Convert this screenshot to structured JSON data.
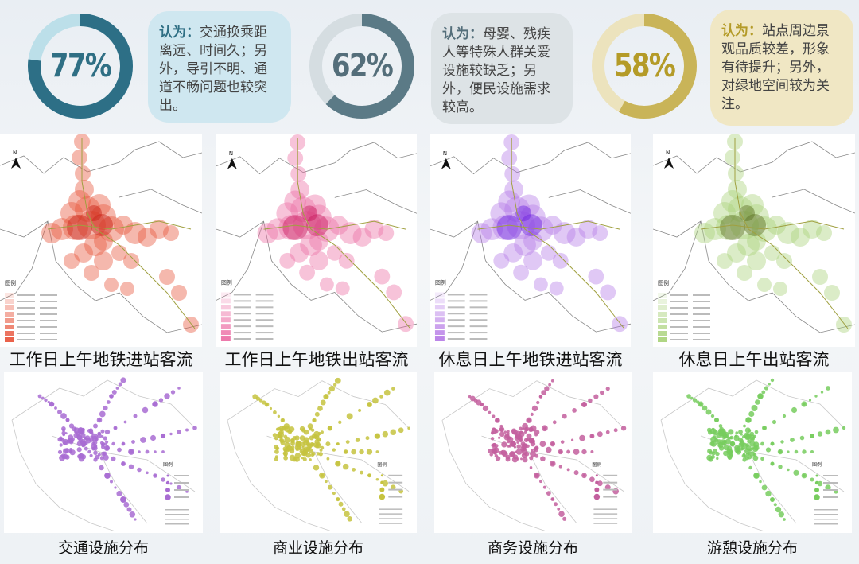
{
  "stats": [
    {
      "percent": "77%",
      "label": "认为：",
      "text": "交通换乘距离远、时间久；另外，导引不明、通道不畅问题也较突出。",
      "ring_color": "#2d6f86",
      "track_color": "#bcdfe9",
      "text_color": "#2f6f84",
      "bubble_bg": "#cfe7f0",
      "fill_fraction": 0.77
    },
    {
      "percent": "62%",
      "label": "认为：",
      "text": "母婴、残疾人等特殊人群关爱设施较缺乏；另外，便民设施需求较高。",
      "ring_color": "#5b7a86",
      "track_color": "#d5dde1",
      "text_color": "#546e7a",
      "bubble_bg": "#dde3e6",
      "fill_fraction": 0.62
    },
    {
      "percent": "58%",
      "label": "认为：",
      "text": "站点周边景观品质较差，形象有待提升；另外，对绿地空间较为关注。",
      "ring_color": "#c9b458",
      "track_color": "#ece3bd",
      "text_color": "#b49b28",
      "bubble_bg": "#f0e7c4",
      "fill_fraction": 0.58
    }
  ],
  "heatmaps": [
    {
      "caption": "工作日上午地铁进站客流",
      "legend_title": "图例",
      "color": "#e8553c",
      "core": "#c81e14"
    },
    {
      "caption": "工作日上午地铁出站客流",
      "legend_title": "图例",
      "color": "#ec6fa5",
      "core": "#c8145a"
    },
    {
      "caption": "休息日上午地铁进站客流",
      "legend_title": "图例",
      "color": "#b67be6",
      "core": "#6a1ee0"
    },
    {
      "caption": "休息日上午出站客流",
      "legend_title": "图例",
      "color": "#a9d27a",
      "core": "#5a6e22"
    }
  ],
  "facilities": [
    {
      "caption": "交通设施分布",
      "legend_title": "图例",
      "color": "#a86cd2"
    },
    {
      "caption": "商业设施分布",
      "legend_title": "图例",
      "color": "#c6c33f"
    },
    {
      "caption": "商务设施分布",
      "legend_title": "图例",
      "color": "#c35f9e"
    },
    {
      "caption": "游憩设施分布",
      "legend_title": "图例",
      "color": "#77cc5e"
    }
  ],
  "north_symbol": "N"
}
